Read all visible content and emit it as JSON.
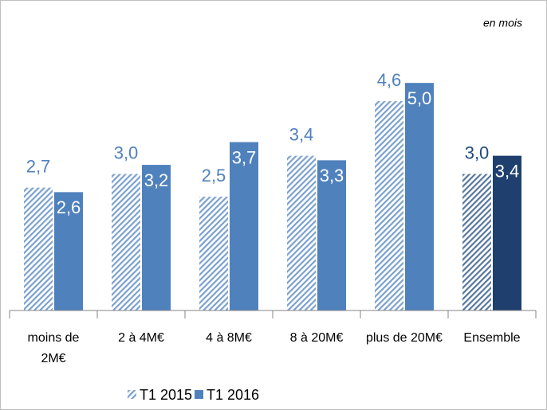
{
  "chart_data": {
    "type": "bar",
    "annotation": "en mois",
    "categories": [
      "moins de 2M€",
      "2 à 4M€",
      "4 à 8M€",
      "8 à 20M€",
      "plus de 20M€",
      "Ensemble"
    ],
    "series": [
      {
        "name": "T1 2015",
        "color": "#4f81bd",
        "pattern": "hatch",
        "colors": [
          "#4f81bd",
          "#4f81bd",
          "#4f81bd",
          "#4f81bd",
          "#4f81bd",
          "#1f497d"
        ],
        "values": [
          2.7,
          3.0,
          2.5,
          3.4,
          4.6,
          3.0
        ],
        "value_labels": [
          "2,7",
          "3,0",
          "2,5",
          "3,4",
          "4,6",
          "3,0"
        ]
      },
      {
        "name": "T1 2016",
        "color": "#4f81bd",
        "pattern": "solid",
        "colors": [
          "#4f81bd",
          "#4f81bd",
          "#4f81bd",
          "#4f81bd",
          "#4f81bd",
          "#1f3f6e"
        ],
        "values": [
          2.6,
          3.2,
          3.7,
          3.3,
          5.0,
          3.4
        ],
        "value_labels": [
          "2,6",
          "3,2",
          "3,7",
          "3,3",
          "5,0",
          "3,4"
        ]
      }
    ],
    "ylim": [
      0,
      6
    ],
    "legend": "bottom"
  }
}
